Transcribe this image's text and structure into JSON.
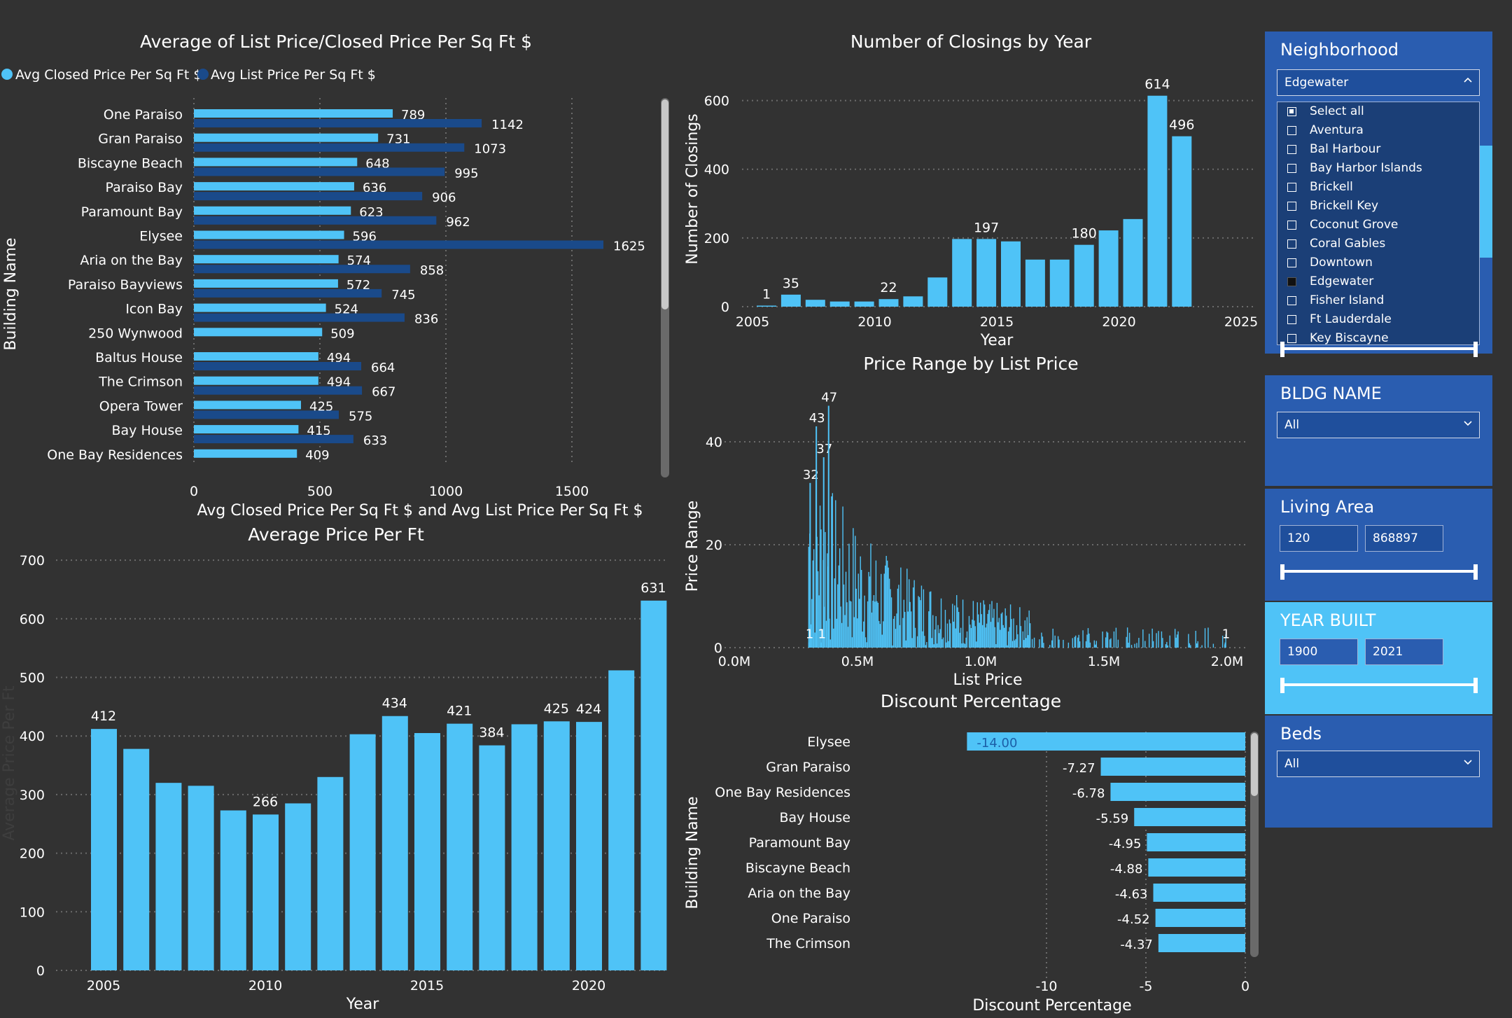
{
  "bar_chart1": {
    "title": "Average of List Price/Closed Price Per Sq Ft $",
    "legend": [
      "Avg Closed Price Per Sq Ft $",
      "Avg List Price Per Sq Ft $"
    ],
    "xlabel": "Avg Closed Price Per Sq Ft $ and Avg List Price Per Sq Ft $",
    "ylabel": "Building Name"
  },
  "closings_chart": {
    "title": "Number of Closings by Year",
    "xlabel": "Year",
    "ylabel": "Number of Closings"
  },
  "price_range_chart": {
    "title": "Price Range by List Price",
    "xlabel": "List Price",
    "ylabel": "Price Range"
  },
  "avg_price_chart": {
    "title": "Average Price Per Ft",
    "xlabel": "Year",
    "ylabel": "Average Price Per Ft"
  },
  "discount_chart": {
    "title": "Discount Percentage",
    "xlabel": "Discount Percentage",
    "ylabel": "Building Name"
  },
  "chart_data": [
    {
      "type": "bar",
      "orientation": "horizontal",
      "title": "Average of List Price/Closed Price Per Sq Ft $",
      "categories": [
        "One Paraiso",
        "Gran Paraiso",
        "Biscayne Beach",
        "Paraiso Bay",
        "Paramount Bay",
        "Elysee",
        "Aria on the Bay",
        "Paraiso Bayviews",
        "Icon Bay",
        "250 Wynwood",
        "Baltus House",
        "The Crimson",
        "Opera Tower",
        "Bay House",
        "One Bay Residences"
      ],
      "series": [
        {
          "name": "Avg Closed Price Per Sq Ft $",
          "values": [
            789,
            731,
            648,
            636,
            623,
            596,
            574,
            572,
            524,
            509,
            494,
            494,
            425,
            415,
            409
          ]
        },
        {
          "name": "Avg List Price Per Sq Ft $",
          "values": [
            1142,
            1073,
            995,
            906,
            962,
            1625,
            858,
            745,
            836,
            null,
            664,
            667,
            575,
            633,
            null
          ]
        }
      ],
      "xticks": [
        0,
        500,
        1000,
        1500
      ],
      "xlim": [
        0,
        1800
      ],
      "xlabel": "Avg Closed Price Per Sq Ft $ and Avg List Price Per Sq Ft $",
      "ylabel": "Building Name",
      "colors": [
        "#4fc3f7",
        "#1a4a8a"
      ]
    },
    {
      "type": "bar",
      "title": "Number of Closings by Year",
      "x": [
        2005,
        2006,
        2007,
        2008,
        2009,
        2010,
        2011,
        2012,
        2013,
        2014,
        2015,
        2016,
        2017,
        2018,
        2019,
        2020,
        2021,
        2022
      ],
      "values": [
        1,
        35,
        20,
        15,
        15,
        22,
        30,
        85,
        197,
        197,
        190,
        137,
        137,
        180,
        222,
        255,
        614,
        496
      ],
      "labels": {
        "2005": "1",
        "2006": "35",
        "2010": "22",
        "2014": "197",
        "2018": "180",
        "2021": "614",
        "2022": "496"
      },
      "yticks": [
        0,
        200,
        400,
        600
      ],
      "ylim": [
        0,
        680
      ],
      "xticks": [
        2005,
        2010,
        2015,
        2020,
        2025
      ],
      "xlim": [
        2004.5,
        2025
      ],
      "xlabel": "Year",
      "ylabel": "Number of Closings",
      "color": "#4fc3f7"
    },
    {
      "type": "bar",
      "title": "Price Range by List Price",
      "description": "dense histogram-like bars of Price Range by List Price",
      "annotations": [
        {
          "x": 0.305,
          "y": 32,
          "label": "32"
        },
        {
          "x": 0.33,
          "y": 43,
          "label": "43"
        },
        {
          "x": 0.36,
          "y": 37,
          "label": "37"
        },
        {
          "x": 0.38,
          "y": 47,
          "label": "47"
        },
        {
          "x": 0.3,
          "y": 1,
          "label": "1"
        },
        {
          "x": 0.35,
          "y": 1,
          "label": "1"
        },
        {
          "x": 1.99,
          "y": 1,
          "label": "1"
        }
      ],
      "yticks": [
        0,
        20,
        40
      ],
      "ylim": [
        0,
        52
      ],
      "xticks": [
        0.0,
        0.5,
        1.0,
        1.5,
        2.0
      ],
      "xtick_labels": [
        "0.0M",
        "0.5M",
        "1.0M",
        "1.5M",
        "2.0M"
      ],
      "xlim": [
        0,
        2.0
      ],
      "xlabel": "List Price",
      "ylabel": "Price Range",
      "color": "#4fc3f7"
    },
    {
      "type": "bar",
      "title": "Average Price Per Ft",
      "x": [
        2005,
        2006,
        2007,
        2008,
        2009,
        2010,
        2011,
        2012,
        2013,
        2014,
        2015,
        2016,
        2017,
        2018,
        2019,
        2020,
        2021,
        2022
      ],
      "values": [
        412,
        378,
        320,
        315,
        273,
        266,
        285,
        330,
        403,
        434,
        405,
        421,
        384,
        420,
        425,
        424,
        512,
        631
      ],
      "labels": {
        "2005": "412",
        "2010": "266",
        "2014": "434",
        "2016": "421",
        "2017": "384",
        "2019": "425",
        "2020": "424",
        "2022": "631"
      },
      "yticks": [
        0,
        100,
        200,
        300,
        400,
        500,
        600,
        700
      ],
      "ylim": [
        0,
        700
      ],
      "xticks": [
        2005,
        2010,
        2015,
        2020
      ],
      "xlim": [
        2004.5,
        2022.5
      ],
      "xlabel": "Year",
      "ylabel": "Average Price Per Ft",
      "color": "#4fc3f7"
    },
    {
      "type": "bar",
      "orientation": "horizontal",
      "title": "Discount Percentage",
      "categories": [
        "Elysee",
        "Gran Paraiso",
        "One Bay Residences",
        "Bay House",
        "Paramount Bay",
        "Biscayne Beach",
        "Aria on the Bay",
        "One Paraiso",
        "The Crimson"
      ],
      "values": [
        -14.0,
        -7.27,
        -6.78,
        -5.59,
        -4.95,
        -4.88,
        -4.63,
        -4.52,
        -4.37
      ],
      "labels": [
        "-14.00",
        "-7.27",
        "-6.78",
        "-5.59",
        "-4.95",
        "-4.88",
        "-4.63",
        "-4.52",
        "-4.37"
      ],
      "xticks": [
        -10,
        -5,
        0
      ],
      "xlim": [
        -14.5,
        0
      ],
      "xlabel": "Discount Percentage",
      "ylabel": "Building Name",
      "color": "#4fc3f7"
    }
  ],
  "slicers": {
    "neighborhood": {
      "title": "Neighborhood",
      "selected": "Edgewater",
      "options": [
        "Select all",
        "Aventura",
        "Bal Harbour",
        "Bay Harbor Islands",
        "Brickell",
        "Brickell Key",
        "Coconut Grove",
        "Coral Gables",
        "Downtown",
        "Edgewater",
        "Fisher Island",
        "Ft Lauderdale",
        "Key Biscayne"
      ]
    },
    "bldg_name": {
      "title": "BLDG NAME",
      "value": "All"
    },
    "living_area": {
      "title": "Living Area",
      "min": "120",
      "max": "868897"
    },
    "year_built": {
      "title": "YEAR BUILT",
      "min": "1900",
      "max": "2021"
    },
    "beds": {
      "title": "Beds",
      "value": "All"
    }
  },
  "colors": {
    "accent": "#4fc3f7",
    "list_series": "#1a4a8a",
    "panel_dark": "#2a5db0",
    "panel_light": "#4fc3f7",
    "background": "#323232"
  }
}
